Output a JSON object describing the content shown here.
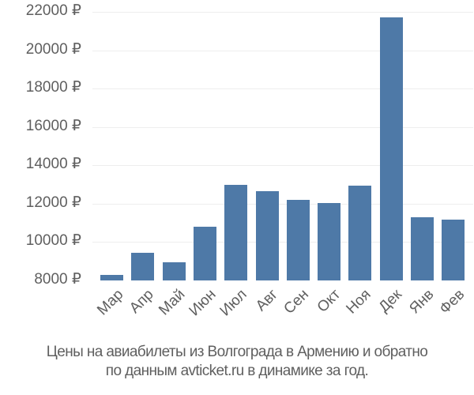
{
  "chart_data": {
    "type": "bar",
    "title": "Цены на авиабилеты из Волгограда в Армению и обратно по данным avticket.ru в динамике за год.",
    "xlabel": "",
    "ylabel": "",
    "categories": [
      "Мар",
      "Апр",
      "Май",
      "Июн",
      "Июл",
      "Авг",
      "Сен",
      "Окт",
      "Ноя",
      "Дек",
      "Янв",
      "Фев"
    ],
    "values": [
      8290,
      9440,
      8950,
      10800,
      12980,
      12650,
      12200,
      12030,
      12940,
      21700,
      11300,
      11180
    ],
    "ylim": [
      8000,
      22000
    ],
    "yticks": [
      8000,
      10000,
      12000,
      14000,
      16000,
      18000,
      20000,
      22000
    ],
    "ytick_labels": [
      "8000 ₽",
      "10000 ₽",
      "12000 ₽",
      "14000 ₽",
      "16000 ₽",
      "18000 ₽",
      "20000 ₽",
      "22000 ₽"
    ],
    "currency_symbol": "₽",
    "grid": true,
    "legend": null,
    "bar_color": "#4e79a7"
  },
  "caption": {
    "line1": "Цены на авиабилеты из Волгограда в Армению и обратно",
    "line2": "по данным avticket.ru в динамике за год."
  },
  "colors": {
    "bar": "#4e79a7",
    "text": "#5f5f5f",
    "grid": "#eeeeee"
  }
}
